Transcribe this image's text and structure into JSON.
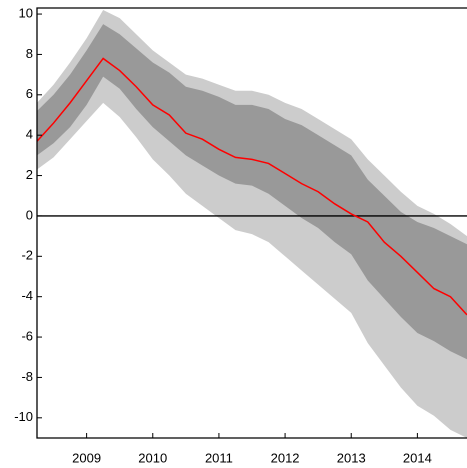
{
  "chart_data": {
    "type": "fan",
    "x": [
      2008.25,
      2008.5,
      2008.75,
      2009,
      2009.25,
      2009.5,
      2009.75,
      2010,
      2010.25,
      2010.5,
      2010.75,
      2011,
      2011.25,
      2011.5,
      2011.75,
      2012,
      2012.25,
      2012.5,
      2012.75,
      2013,
      2013.25,
      2013.5,
      2013.75,
      2014,
      2014.25,
      2014.5,
      2014.75
    ],
    "bands": [
      {
        "color": "#cccccc",
        "upper": [
          5.6,
          6.5,
          7.6,
          8.8,
          10.2,
          9.8,
          9.0,
          8.2,
          7.6,
          7.0,
          6.8,
          6.5,
          6.2,
          6.2,
          6.0,
          5.6,
          5.3,
          4.8,
          4.3,
          3.8,
          2.8,
          2.0,
          1.2,
          0.5,
          0.1,
          -0.4,
          -1.0
        ],
        "lower": [
          2.3,
          2.9,
          3.8,
          4.7,
          5.6,
          4.9,
          3.9,
          2.8,
          2.0,
          1.1,
          0.5,
          -0.1,
          -0.7,
          -0.9,
          -1.3,
          -2.0,
          -2.7,
          -3.4,
          -4.1,
          -4.8,
          -6.3,
          -7.4,
          -8.5,
          -9.4,
          -9.9,
          -10.6,
          -11.0
        ]
      },
      {
        "color": "#999999",
        "upper": [
          5.2,
          6.0,
          7.0,
          8.2,
          9.5,
          9.0,
          8.3,
          7.6,
          7.1,
          6.4,
          6.2,
          5.9,
          5.5,
          5.5,
          5.3,
          4.8,
          4.5,
          4.0,
          3.5,
          3.0,
          1.8,
          1.0,
          0.2,
          -0.3,
          -0.6,
          -1.0,
          -1.4
        ],
        "lower": [
          3.0,
          3.6,
          4.4,
          5.5,
          6.9,
          6.3,
          5.3,
          4.4,
          3.7,
          3.0,
          2.5,
          2.0,
          1.6,
          1.5,
          1.1,
          0.5,
          -0.1,
          -0.6,
          -1.3,
          -1.9,
          -3.2,
          -4.1,
          -5.0,
          -5.8,
          -6.2,
          -6.7,
          -7.1
        ]
      }
    ],
    "line": {
      "color": "#ff0000",
      "values": [
        3.7,
        4.6,
        5.6,
        6.7,
        7.8,
        7.2,
        6.4,
        5.5,
        5.0,
        4.1,
        3.8,
        3.3,
        2.9,
        2.8,
        2.6,
        2.1,
        1.6,
        1.2,
        0.6,
        0.1,
        -0.3,
        -1.3,
        -2.0,
        -2.8,
        -3.6,
        -4.0,
        -4.9
      ]
    },
    "reference_line": 0,
    "xlim": [
      2008.25,
      2014.75
    ],
    "xticks": [
      2009,
      2010,
      2011,
      2012,
      2013,
      2014
    ],
    "ylim": [
      -11,
      10.3
    ],
    "yticks": [
      -10,
      -8,
      -6,
      -4,
      -2,
      0,
      2,
      4,
      6,
      8,
      10
    ]
  }
}
